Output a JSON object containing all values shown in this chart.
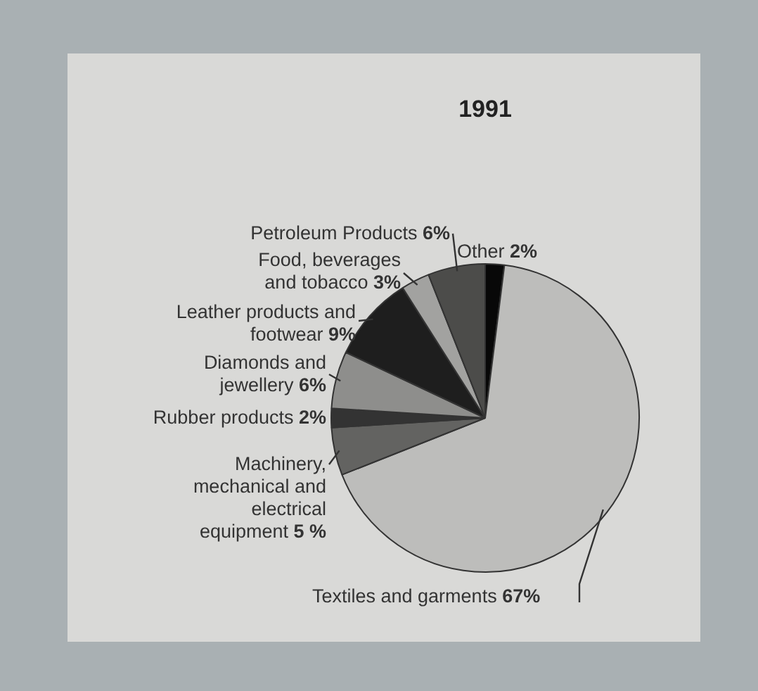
{
  "chart_data": {
    "type": "pie",
    "title": "1991",
    "categories": [
      "Other",
      "Textiles and garments",
      "Machinery, mechanical and electrical equipment",
      "Rubber products",
      "Diamonds and jewellery",
      "Leather products and footwear",
      "Food, beverages and tobacco",
      "Petroleum Products"
    ],
    "values": [
      2,
      67,
      5,
      2,
      6,
      9,
      3,
      6
    ],
    "value_labels": [
      "2%",
      "67%",
      "5 %",
      "2%",
      "6%",
      "9%",
      "3%",
      "6%"
    ],
    "colors": [
      "#080808",
      "#bdbdbb",
      "#636361",
      "#333333",
      "#8e8e8c",
      "#1e1e1e",
      "#a2a2a0",
      "#4c4c4a"
    ],
    "legend": false
  }
}
